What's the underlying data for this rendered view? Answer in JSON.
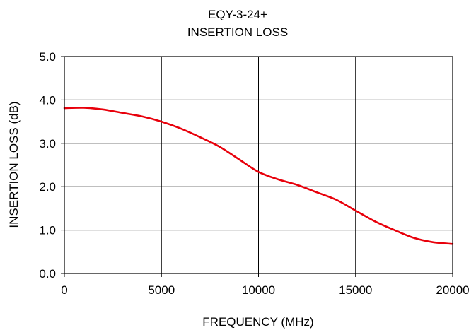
{
  "chart_data": {
    "type": "line",
    "title": "EQY-3-24+",
    "subtitle": "INSERTION LOSS",
    "xlabel": "FREQUENCY (MHz)",
    "ylabel": "INSERTION LOSS (dB)",
    "xlim": [
      0,
      20000
    ],
    "ylim": [
      0.0,
      5.0
    ],
    "x_ticks": [
      0,
      5000,
      10000,
      15000,
      20000
    ],
    "y_ticks": [
      0.0,
      1.0,
      2.0,
      3.0,
      4.0,
      5.0
    ],
    "x_tick_labels": [
      "0",
      "5000",
      "10000",
      "15000",
      "20000"
    ],
    "y_tick_labels": [
      "0.0",
      "1.0",
      "2.0",
      "3.0",
      "4.0",
      "5.0"
    ],
    "grid": true,
    "legend": "none",
    "series": [
      {
        "color": "#e8000b",
        "x": [
          0,
          1000,
          2000,
          3000,
          4000,
          5000,
          6000,
          7000,
          8000,
          9000,
          10000,
          11000,
          12000,
          13000,
          14000,
          15000,
          16000,
          17000,
          18000,
          19000,
          20000
        ],
        "values": [
          3.81,
          3.82,
          3.78,
          3.7,
          3.62,
          3.5,
          3.34,
          3.14,
          2.92,
          2.63,
          2.34,
          2.17,
          2.04,
          1.87,
          1.7,
          1.45,
          1.2,
          1.0,
          0.82,
          0.72,
          0.68
        ]
      }
    ]
  }
}
